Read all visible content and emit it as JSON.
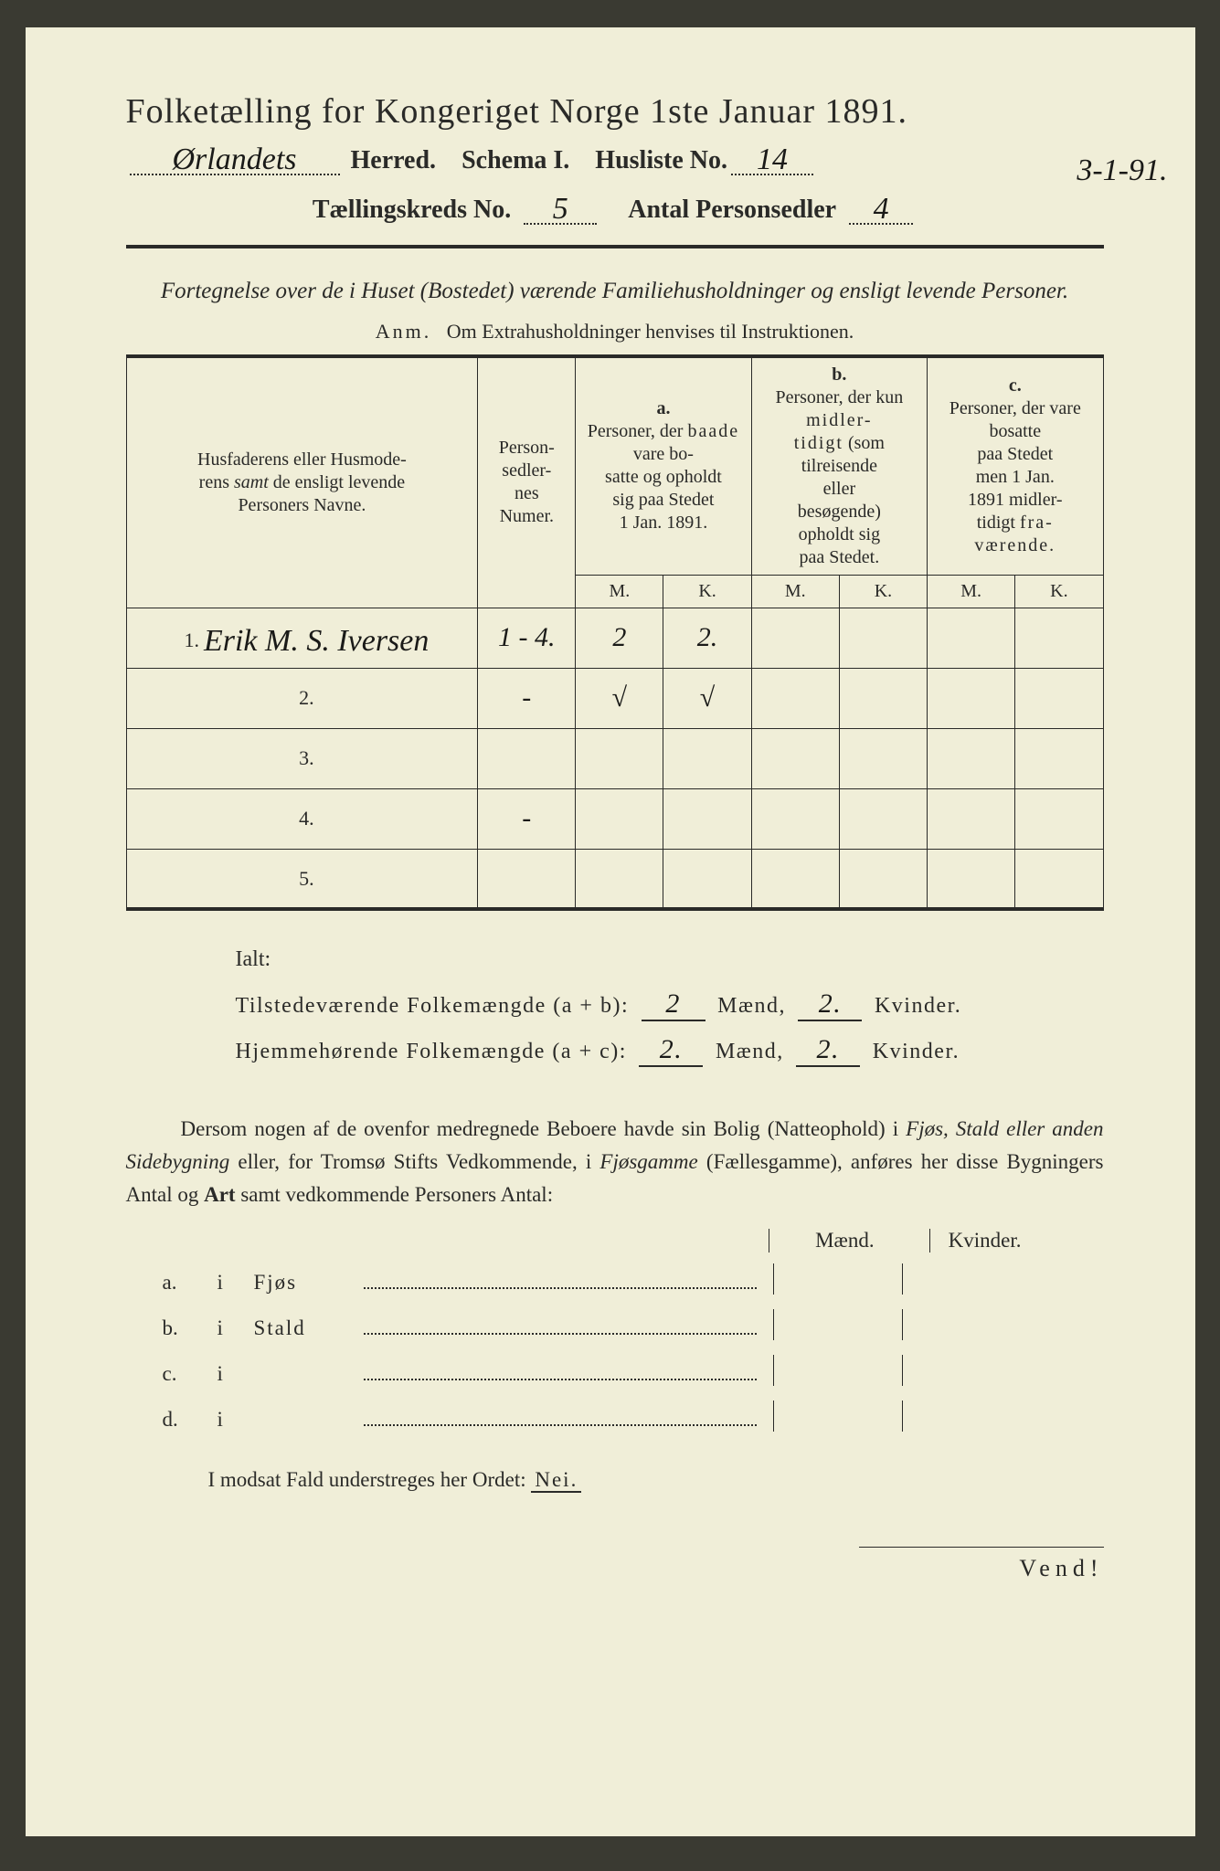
{
  "colors": {
    "paper": "#f0eed8",
    "ink": "#2a2a28",
    "frame": "#3a3a32",
    "handwriting": "#1a1a18"
  },
  "typography": {
    "body_family": "Times New Roman",
    "handwriting_family": "Brush Script MT",
    "title_size_pt": 29,
    "body_size_pt": 17,
    "table_size_pt": 15
  },
  "header": {
    "title": "Folketælling for Kongeriget Norge 1ste Januar 1891.",
    "herred_value": "Ørlandets",
    "herred_label": "Herred.",
    "schema_label": "Schema I.",
    "husliste_label": "Husliste No.",
    "husliste_value": "14",
    "date_corner": "3-1-91.",
    "kreds_label": "Tællingskreds No.",
    "kreds_value": "5",
    "antal_label": "Antal Personsedler",
    "antal_value": "4"
  },
  "subtitle": "Fortegnelse over de i Huset (Bostedet) værende Familiehusholdninger og ensligt levende Personer.",
  "anm_label": "Anm.",
  "anm_text": "Om Extrahusholdninger henvises til Instruktionen.",
  "table": {
    "col_name_header": "Husfaderens eller Husmoderens samt de ensligt levende Personers Navne.",
    "col_num_header": "Personsedlernes Numer.",
    "col_a_label": "a.",
    "col_a_text": "Personer, der baade vare bosatte og opholdt sig paa Stedet 1 Jan. 1891.",
    "col_b_label": "b.",
    "col_b_text": "Personer, der kun midlertidigt (som tilreisende eller besøgende) opholdt sig paa Stedet.",
    "col_c_label": "c.",
    "col_c_text": "Personer, der vare bosatte paa Stedet men 1 Jan. 1891 midlertidigt fraværende.",
    "mk_m": "M.",
    "mk_k": "K.",
    "rows": [
      {
        "n": "1.",
        "name": "Erik M. S. Iversen",
        "num": "1 - 4.",
        "aM": "2",
        "aK": "2.",
        "bM": "",
        "bK": "",
        "cM": "",
        "cK": ""
      },
      {
        "n": "2.",
        "name": "",
        "num": "-",
        "aM": "√",
        "aK": "√",
        "bM": "",
        "bK": "",
        "cM": "",
        "cK": ""
      },
      {
        "n": "3.",
        "name": "",
        "num": "",
        "aM": "",
        "aK": "",
        "bM": "",
        "bK": "",
        "cM": "",
        "cK": ""
      },
      {
        "n": "4.",
        "name": "",
        "num": "-",
        "aM": "",
        "aK": "",
        "bM": "",
        "bK": "",
        "cM": "",
        "cK": ""
      },
      {
        "n": "5.",
        "name": "",
        "num": "",
        "aM": "",
        "aK": "",
        "bM": "",
        "bK": "",
        "cM": "",
        "cK": ""
      }
    ]
  },
  "ialt": {
    "title": "Ialt:",
    "line1_label": "Tilstedeværende Folkemængde (a + b):",
    "line2_label": "Hjemmehørende Folkemængde (a + c):",
    "maend_label": "Mænd,",
    "kvinder_label": "Kvinder.",
    "l1_m": "2",
    "l1_k": "2.",
    "l2_m": "2.",
    "l2_k": "2."
  },
  "para": {
    "t1": "Dersom nogen af de ovenfor medregnede Beboere havde sin Bolig (Natteophold) i ",
    "i1": "Fjøs, Stald eller anden Sidebygning",
    "t2": " eller, for Tromsø Stifts Vedkommende, i ",
    "i2": "Fjøsgamme",
    "t3": " (Fællesgamme), anføres her disse Bygningers Antal og ",
    "b1": "Art",
    "t4": " samt vedkommende Personers Antal:"
  },
  "mend_kv": {
    "m": "Mænd.",
    "k": "Kvinder."
  },
  "abcd": {
    "rows": [
      {
        "lbl": "a.",
        "i": "i",
        "name": "Fjøs"
      },
      {
        "lbl": "b.",
        "i": "i",
        "name": "Stald"
      },
      {
        "lbl": "c.",
        "i": "i",
        "name": ""
      },
      {
        "lbl": "d.",
        "i": "i",
        "name": ""
      }
    ]
  },
  "nei": {
    "pre": "I modsat Fald understreges her Ordet: ",
    "word": "Nei."
  },
  "vend": "Vend!"
}
